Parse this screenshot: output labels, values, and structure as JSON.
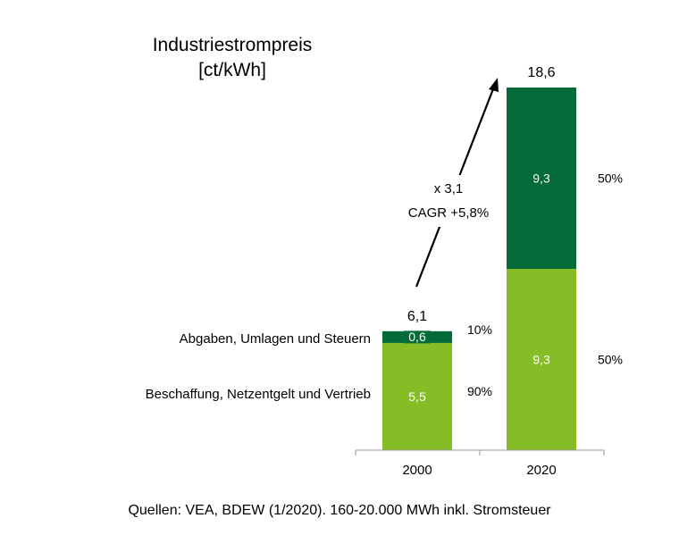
{
  "chart_data": {
    "type": "bar",
    "stacked": true,
    "title_line1": "Industriestrompreis",
    "title_line2": "[ct/kWh]",
    "categories": [
      "2000",
      "2020"
    ],
    "series": [
      {
        "name": "Beschaffung, Netzentgelt und Vertrieb",
        "values": [
          5.5,
          9.3
        ],
        "labels": [
          "5,5",
          "9,3"
        ],
        "shares": [
          "90%",
          "50%"
        ],
        "color": "#86bc25"
      },
      {
        "name": "Abgaben, Umlagen und Steuern",
        "values": [
          0.6,
          9.3
        ],
        "labels": [
          "0,6",
          "9,3"
        ],
        "shares": [
          "10%",
          "50%"
        ],
        "color": "#046a38"
      }
    ],
    "totals": [
      6.1,
      18.6
    ],
    "total_labels": [
      "6,1",
      "18,6"
    ],
    "annotation_line1": "x 3,1",
    "annotation_line2": "CAGR +5,8%",
    "ylim": [
      0,
      18.6
    ],
    "grid": false,
    "legend": "left of first bar",
    "source": "Quellen: VEA, BDEW (1/2020). 160-20.000 MWh inkl. Stromsteuer"
  }
}
